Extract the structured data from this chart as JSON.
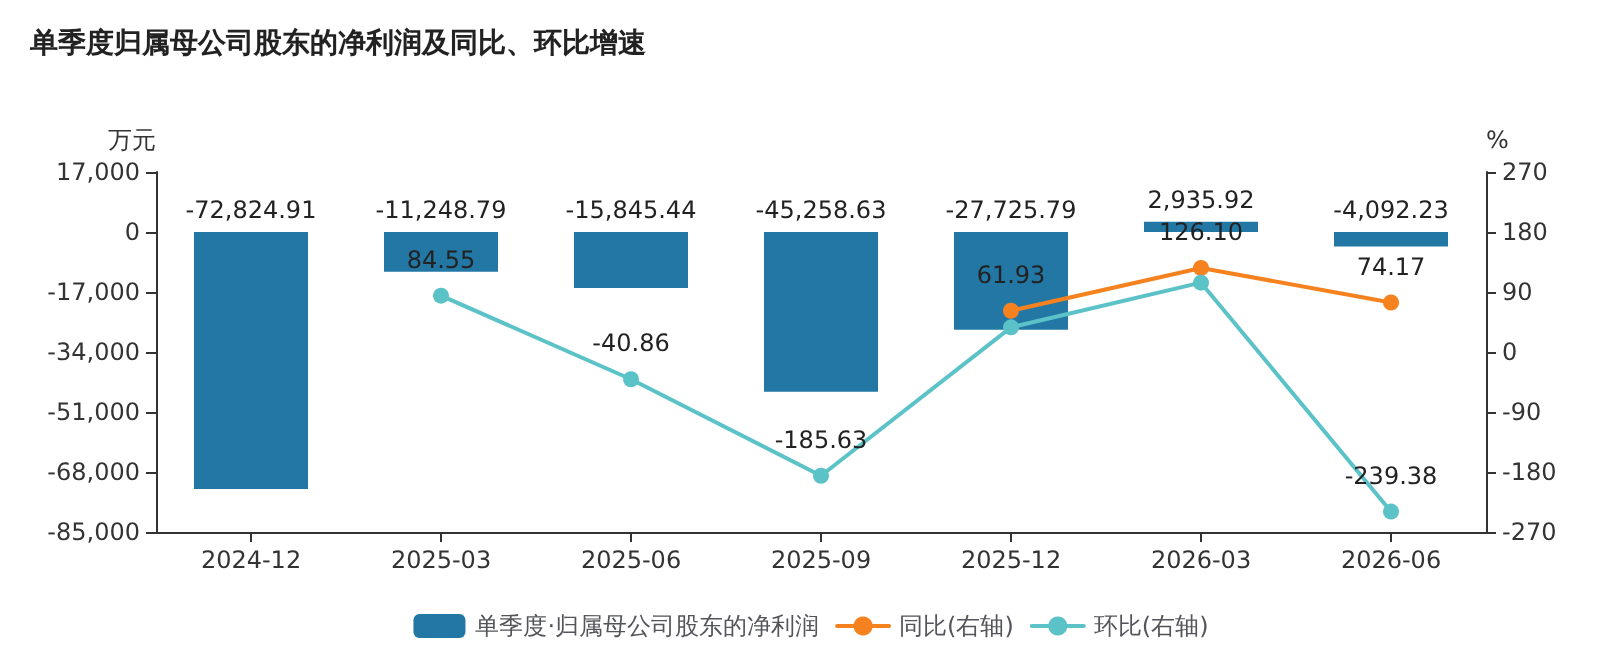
{
  "chart_data": {
    "type": "bar",
    "title": "单季度归属母公司股东的净利润及同比、环比增速",
    "ylabel": "万元",
    "y2label": "%",
    "categories": [
      "2024-12",
      "2025-03",
      "2025-06",
      "2025-09",
      "2025-12",
      "2026-03",
      "2026-06"
    ],
    "series": [
      {
        "name": "单季度·归属母公司股东的净利润",
        "color": "#2277a4",
        "values": [
          -72824.91,
          -11248.79,
          -15845.44,
          -45258.63,
          -27725.79,
          2935.92,
          -4092.23
        ],
        "value_labels": [
          "-72,824.91",
          "-11,248.79",
          "-15,845.44",
          "-45,258.63",
          "-27,725.79",
          "2,935.92",
          "-4,092.23"
        ]
      },
      {
        "name": "同比(右轴)",
        "type": "line",
        "axis": "y2",
        "color": "#f5821f",
        "values": [
          null,
          null,
          null,
          null,
          61.93,
          126.1,
          74.17
        ],
        "value_labels": [
          null,
          null,
          null,
          null,
          "61.93",
          "126.10",
          "74.17"
        ]
      },
      {
        "name": "环比(右轴)",
        "type": "line",
        "axis": "y2",
        "color": "#5bc2c8",
        "values": [
          null,
          84.55,
          -40.86,
          -185.63,
          37,
          104,
          -239.38
        ],
        "value_labels": [
          null,
          "84.55",
          "-40.86",
          "-185.63",
          null,
          null,
          "-239.38"
        ]
      }
    ],
    "ylim": [
      -85000,
      17000
    ],
    "yticks": [
      {
        "value": -85000,
        "label": "-85,000"
      },
      {
        "value": -68000,
        "label": "-68,000"
      },
      {
        "value": -51000,
        "label": "-51,000"
      },
      {
        "value": -34000,
        "label": "-34,000"
      },
      {
        "value": -17000,
        "label": "-17,000"
      },
      0,
      {
        "value": 17000,
        "label": "17,000"
      }
    ],
    "y2lim": [
      -270,
      270
    ],
    "y2ticks": [
      -270,
      -180,
      -90,
      0,
      90,
      180,
      270
    ],
    "grid": false,
    "legend": "bottom",
    "marker": "circle",
    "line_style": "solid"
  }
}
